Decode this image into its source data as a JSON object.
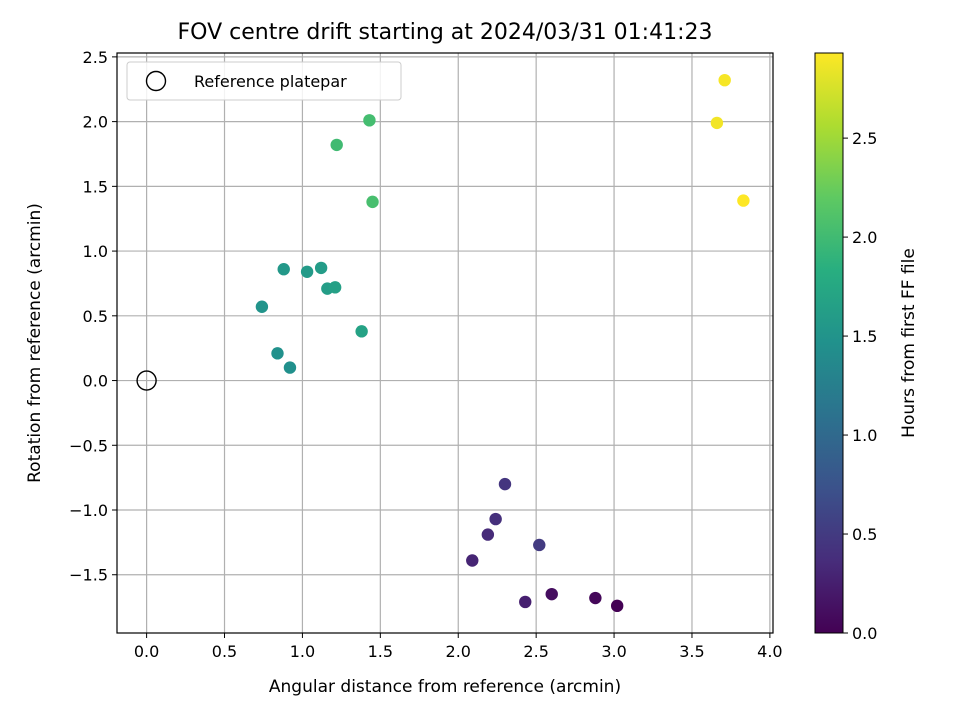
{
  "chart_data": {
    "type": "scatter",
    "title": "FOV centre drift starting at 2024/03/31 01:41:23",
    "xlabel": "Angular distance from reference (arcmin)",
    "ylabel": "Rotation from reference (arcmin)",
    "xlim": [
      -0.19,
      4.02
    ],
    "ylim": [
      -1.95,
      2.53
    ],
    "xticks": [
      0.0,
      0.5,
      1.0,
      1.5,
      2.0,
      2.5,
      3.0,
      3.5,
      4.0
    ],
    "xtick_labels": [
      "0.0",
      "0.5",
      "1.0",
      "1.5",
      "2.0",
      "2.5",
      "3.0",
      "3.5",
      "4.0"
    ],
    "yticks": [
      -1.5,
      -1.0,
      -0.5,
      0.0,
      0.5,
      1.0,
      1.5,
      2.0,
      2.5
    ],
    "ytick_labels": [
      "−1.5",
      "−1.0",
      "−0.5",
      "0.0",
      "0.5",
      "1.0",
      "1.5",
      "2.0",
      "2.5"
    ],
    "grid": true,
    "legend": {
      "placement": "top-left",
      "entries": [
        "Reference platepar"
      ]
    },
    "reference_point": {
      "name": "Reference platepar",
      "x": 0.0,
      "y": 0.0,
      "marker": "open-circle"
    },
    "colorbar": {
      "label": "Hours from first FF file",
      "colormap": "viridis",
      "range": [
        0.0,
        2.93
      ],
      "ticks": [
        0.0,
        0.5,
        1.0,
        1.5,
        2.0,
        2.5
      ],
      "tick_labels": [
        "0.0",
        "0.5",
        "1.0",
        "1.5",
        "2.0",
        "2.5"
      ]
    },
    "points": [
      {
        "x": 3.02,
        "y": -1.74,
        "c": 0.0
      },
      {
        "x": 2.88,
        "y": -1.68,
        "c": 0.05
      },
      {
        "x": 2.6,
        "y": -1.65,
        "c": 0.1
      },
      {
        "x": 2.43,
        "y": -1.71,
        "c": 0.25
      },
      {
        "x": 2.09,
        "y": -1.39,
        "c": 0.3
      },
      {
        "x": 2.19,
        "y": -1.19,
        "c": 0.35
      },
      {
        "x": 2.24,
        "y": -1.07,
        "c": 0.4
      },
      {
        "x": 2.3,
        "y": -0.8,
        "c": 0.45
      },
      {
        "x": 2.52,
        "y": -1.27,
        "c": 0.5
      },
      {
        "x": 0.92,
        "y": 0.1,
        "c": 1.45
      },
      {
        "x": 0.84,
        "y": 0.21,
        "c": 1.47
      },
      {
        "x": 0.74,
        "y": 0.57,
        "c": 1.5
      },
      {
        "x": 0.88,
        "y": 0.86,
        "c": 1.55
      },
      {
        "x": 1.03,
        "y": 0.84,
        "c": 1.58
      },
      {
        "x": 1.12,
        "y": 0.87,
        "c": 1.6
      },
      {
        "x": 1.16,
        "y": 0.71,
        "c": 1.62
      },
      {
        "x": 1.21,
        "y": 0.72,
        "c": 1.65
      },
      {
        "x": 1.38,
        "y": 0.38,
        "c": 1.68
      },
      {
        "x": 1.22,
        "y": 1.82,
        "c": 2.0
      },
      {
        "x": 1.43,
        "y": 2.01,
        "c": 2.03
      },
      {
        "x": 1.45,
        "y": 1.38,
        "c": 2.05
      },
      {
        "x": 3.66,
        "y": 1.99,
        "c": 2.88
      },
      {
        "x": 3.71,
        "y": 2.32,
        "c": 2.9
      },
      {
        "x": 3.83,
        "y": 1.39,
        "c": 2.93
      }
    ]
  }
}
